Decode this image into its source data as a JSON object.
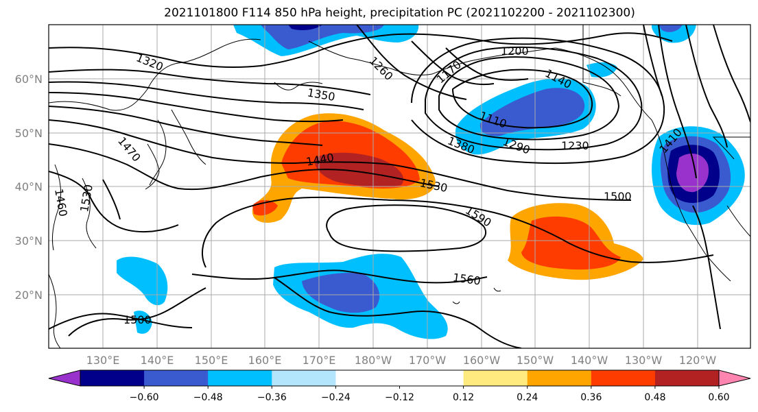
{
  "title": "2021101800 F114 850 hPa height, precipitation PC (2021102200 - 2021102300)",
  "lat_labels": [
    "60°N",
    "50°N",
    "40°N",
    "30°N",
    "20°N"
  ],
  "lon_labels": [
    "130°E",
    "140°E",
    "150°E",
    "160°E",
    "170°E",
    "180°W",
    "170°W",
    "160°W",
    "150°W",
    "140°W",
    "130°W",
    "120°W"
  ],
  "colorbar": {
    "colors": [
      "#9932cc",
      "#00008b",
      "#3a5bd0",
      "#00bfff",
      "#b3e5fc",
      "#ffffff",
      "#ffffff",
      "#ffea80",
      "#ffa500",
      "#ff3c00",
      "#b22222",
      "#ff85b0"
    ],
    "tick_labels": [
      "−0.60",
      "−0.48",
      "−0.36",
      "−0.24",
      "−0.12",
      "0.12",
      "0.24",
      "0.36",
      "0.48",
      "0.60"
    ]
  },
  "contour_labels": [
    "1320",
    "1350",
    "1470",
    "1440",
    "1530",
    "1500",
    "1590",
    "1560",
    "1500",
    "1260",
    "1200",
    "1170",
    "1140",
    "1110",
    "1380",
    "1290",
    "1230",
    "1410",
    "1460",
    "1530"
  ]
}
